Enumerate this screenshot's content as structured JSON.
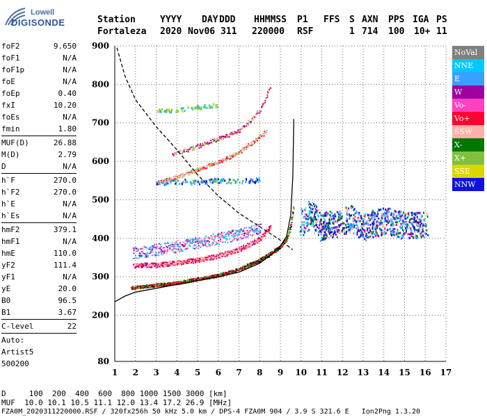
{
  "logo": {
    "line1": "Lowell",
    "line2": "DIGISONDE"
  },
  "header": {
    "labels": [
      "Station",
      "YYYY",
      "DAY",
      "DDD",
      "HHMMSS",
      "P1",
      "FFS",
      "S",
      "AXN",
      "PPS",
      "IGA",
      "PS"
    ],
    "values": [
      "Fortaleza",
      "2020",
      "Nov06",
      "311",
      "220000",
      "RSF",
      "1",
      "714",
      "100",
      "10+",
      "11"
    ]
  },
  "params": {
    "group1": [
      {
        "name": "foF2",
        "value": "9.650"
      },
      {
        "name": "foF1",
        "value": "N/A"
      },
      {
        "name": "foF1p",
        "value": "N/A"
      },
      {
        "name": "foE",
        "value": "N/A"
      },
      {
        "name": "foEp",
        "value": "0.40"
      },
      {
        "name": "fxI",
        "value": "10.20"
      },
      {
        "name": "foEs",
        "value": "N/A"
      },
      {
        "name": "fmin",
        "value": "1.80"
      }
    ],
    "group2": [
      {
        "name": "MUF(D)",
        "value": "26.88"
      },
      {
        "name": "M(D)",
        "value": "2.79"
      },
      {
        "name": "D",
        "value": "N/A"
      }
    ],
    "group3": [
      {
        "name": "h`F",
        "value": "270.0"
      },
      {
        "name": "h`F2",
        "value": "270.0"
      },
      {
        "name": "h`E",
        "value": "N/A"
      },
      {
        "name": "h`Es",
        "value": "N/A"
      }
    ],
    "group4": [
      {
        "name": "hmF2",
        "value": "379.1"
      },
      {
        "name": "hmF1",
        "value": "N/A"
      },
      {
        "name": "hmE",
        "value": "110.0"
      },
      {
        "name": "yF2",
        "value": "111.4"
      },
      {
        "name": "yF1",
        "value": "N/A"
      },
      {
        "name": "yE",
        "value": "20.0"
      },
      {
        "name": "B0",
        "value": "96.5"
      },
      {
        "name": "B1",
        "value": "3.67"
      }
    ],
    "group5": [
      {
        "name": "C-level",
        "value": "22"
      }
    ],
    "auto": [
      "Auto:",
      "Artist5",
      "500200"
    ]
  },
  "legend": [
    {
      "label": "NoVal",
      "color": "#808080"
    },
    {
      "label": "NNE",
      "color": "#00c8ff"
    },
    {
      "label": "E",
      "color": "#3aa0ff"
    },
    {
      "label": "W",
      "color": "#a000a0"
    },
    {
      "label": "Vo-",
      "color": "#ff40c0"
    },
    {
      "label": "Vo+",
      "color": "#ff0030"
    },
    {
      "label": "SSW",
      "color": "#ffb0a8"
    },
    {
      "label": "X-",
      "color": "#007800"
    },
    {
      "label": "X+",
      "color": "#80c040"
    },
    {
      "label": "SSE",
      "color": "#d8d800"
    },
    {
      "label": "NNW",
      "color": "#1010e0"
    }
  ],
  "footer": {
    "d_line": "D     100  200  400  600  800 1000 1500 3000 [km]",
    "muf_line": "MUF  10.0 10.1 10.5 11.1 12.0 13.4 17.2 26.9 [MHz]",
    "file_line": "FZA0M_2020311220000.RSF / 320fx256h 50 kHz 5.0 km / DPS-4 FZA0M 904 / 3.9 S 321.6 E   Ion2Png 1.3.20"
  },
  "chart_data": {
    "type": "scatter",
    "xlim": [
      1,
      17
    ],
    "ylim": [
      80,
      900
    ],
    "x_ticks": [
      1,
      2,
      3,
      4,
      5,
      6,
      7,
      8,
      9,
      10,
      11,
      12,
      13,
      14,
      15,
      16,
      17
    ],
    "y_ticks": [
      80,
      200,
      300,
      400,
      500,
      600,
      700,
      800,
      900
    ],
    "grid": true,
    "legend_placement": "right",
    "profile_curve": {
      "x": [
        1.0,
        1.5,
        2.0,
        3.0,
        4.0,
        5.0,
        6.0,
        7.0,
        8.0,
        8.5,
        9.0,
        9.3,
        9.5,
        9.6,
        9.65
      ],
      "y": [
        235,
        250,
        260,
        270,
        280,
        290,
        300,
        312,
        335,
        355,
        380,
        405,
        460,
        560,
        710
      ]
    },
    "muf_curve": {
      "x": [
        1.1,
        1.5,
        2.0,
        3.0,
        4.0,
        5.0,
        6.0,
        7.0,
        8.0,
        9.0,
        9.6
      ],
      "y": [
        895,
        820,
        760,
        690,
        630,
        565,
        510,
        465,
        430,
        395,
        370
      ]
    },
    "trace_F2_o": {
      "x": [
        1.8,
        2.5,
        3.0,
        4.0,
        5.0,
        6.0,
        7.0,
        7.5,
        8.0,
        8.5,
        9.0,
        9.3,
        9.5,
        9.6
      ],
      "y": [
        272,
        276,
        280,
        285,
        295,
        305,
        320,
        333,
        345,
        360,
        380,
        400,
        435,
        480
      ]
    },
    "trace_2F": {
      "x": [
        1.9,
        3.0,
        4.0,
        5.0,
        6.0,
        7.0,
        7.5,
        8.0,
        8.5
      ],
      "y": [
        330,
        332,
        337,
        345,
        355,
        372,
        385,
        400,
        430
      ]
    },
    "trace_W": {
      "x": [
        1.9,
        2.5,
        3.0,
        4.0,
        5.0,
        6.0,
        7.0,
        7.5,
        8.0
      ],
      "y": [
        362,
        367,
        372,
        380,
        390,
        400,
        412,
        420,
        428
      ]
    },
    "trace_3F": {
      "x": [
        3.0,
        4.0,
        5.0,
        6.0,
        7.0,
        7.5,
        8.0,
        8.3
      ],
      "y": [
        545,
        560,
        580,
        600,
        625,
        645,
        665,
        680
      ]
    },
    "trace_4F": {
      "x": [
        3.8,
        5.0,
        6.0,
        7.0,
        7.5,
        8.0,
        8.5
      ],
      "y": [
        620,
        640,
        660,
        680,
        705,
        735,
        790
      ]
    },
    "scatter_band_1": {
      "x": [
        10.0,
        10.5,
        11.0,
        12.5,
        13.0,
        14.0,
        15.0,
        16.0
      ],
      "y": [
        440,
        470,
        430,
        455,
        430,
        450,
        435,
        440
      ]
    },
    "scatter_band_2": {
      "x": [
        3.0,
        4.0,
        5.0,
        6.0,
        7.0,
        8.0
      ],
      "y": [
        545,
        550,
        548,
        552,
        550,
        553
      ]
    },
    "scatter_band_3": {
      "x": [
        3.0,
        4.0,
        5.0,
        6.0
      ],
      "y": [
        732,
        735,
        742,
        748
      ]
    }
  }
}
